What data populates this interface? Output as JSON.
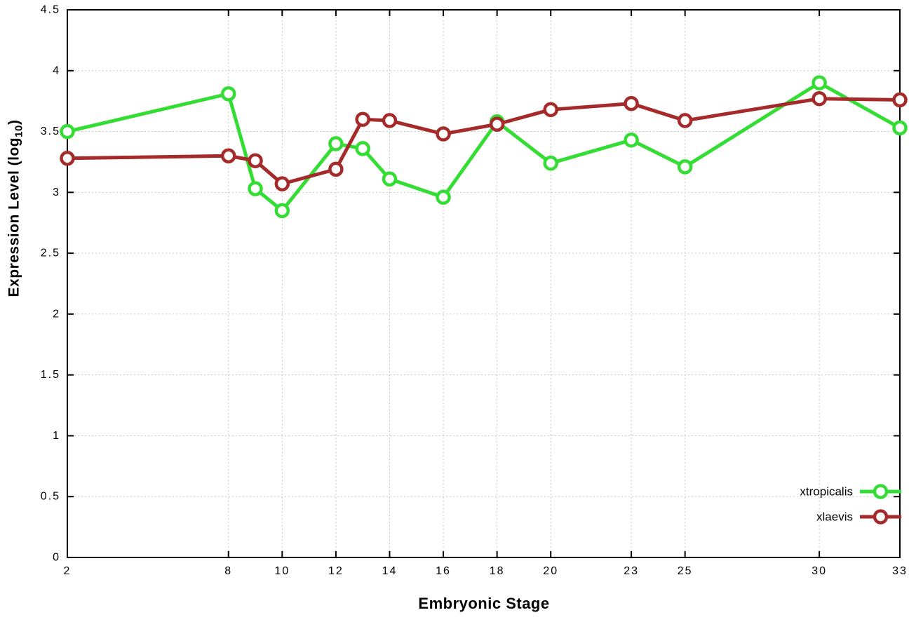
{
  "page": {
    "background": "#ffffff"
  },
  "chart_data": {
    "type": "line",
    "title": "",
    "xlabel": "Embryonic Stage",
    "ylabel": "Expression Level (log10)",
    "ylabel_parts": {
      "prefix": "Expression Level (log",
      "subscript": "10",
      "suffix": ")"
    },
    "xlim": [
      2,
      33
    ],
    "ylim": [
      0,
      4.5
    ],
    "grid": true,
    "legend_position": "bottom-right-inside",
    "axis_color": "#000000",
    "grid_color": "#c8c8c8",
    "x_ticks": [
      {
        "v": 2,
        "label": "2"
      },
      {
        "v": 8,
        "label": "8"
      },
      {
        "v": 10,
        "label": "10"
      },
      {
        "v": 12,
        "label": "12"
      },
      {
        "v": 14,
        "label": "14"
      },
      {
        "v": 16,
        "label": "16"
      },
      {
        "v": 18,
        "label": "18"
      },
      {
        "v": 20,
        "label": "20"
      },
      {
        "v": 23,
        "label": "23"
      },
      {
        "v": 25,
        "label": "25"
      },
      {
        "v": 30,
        "label": "30"
      },
      {
        "v": 33,
        "label": "33"
      }
    ],
    "y_ticks": [
      {
        "v": 0,
        "label": "0"
      },
      {
        "v": 0.5,
        "label": "0.5"
      },
      {
        "v": 1,
        "label": "1"
      },
      {
        "v": 1.5,
        "label": "1.5"
      },
      {
        "v": 2,
        "label": "2"
      },
      {
        "v": 2.5,
        "label": "2.5"
      },
      {
        "v": 3,
        "label": "3"
      },
      {
        "v": 3.5,
        "label": "3.5"
      },
      {
        "v": 4,
        "label": "4"
      },
      {
        "v": 4.5,
        "label": "4.5"
      }
    ],
    "x": [
      2,
      8,
      9,
      10,
      12,
      13,
      14,
      16,
      18,
      20,
      23,
      25,
      30,
      33
    ],
    "series": [
      {
        "name": "xtropicalis",
        "color": "#33dd33",
        "marker": "open-circle",
        "values": [
          3.5,
          3.81,
          3.03,
          2.85,
          3.4,
          3.36,
          3.11,
          2.96,
          3.58,
          3.24,
          3.43,
          3.21,
          3.9,
          3.53
        ]
      },
      {
        "name": "xlaevis",
        "color": "#a52a2a",
        "marker": "open-circle",
        "values": [
          3.28,
          3.3,
          3.26,
          3.07,
          3.19,
          3.6,
          3.59,
          3.48,
          3.56,
          3.68,
          3.73,
          3.59,
          3.77,
          3.76
        ]
      }
    ]
  }
}
